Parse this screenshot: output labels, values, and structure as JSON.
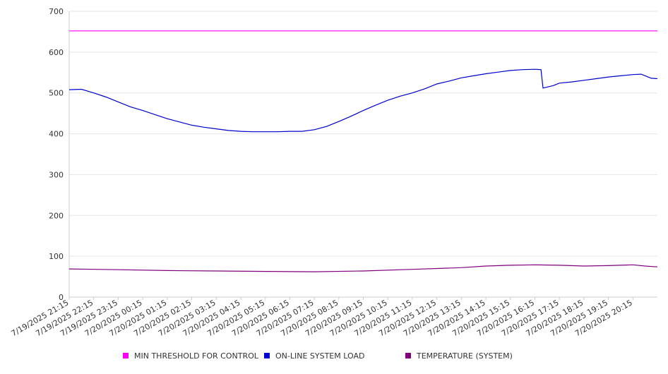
{
  "chart_data": {
    "type": "line",
    "title": "",
    "xlabel": "",
    "ylabel": "",
    "ylim": [
      0,
      700
    ],
    "y_ticks": [
      0,
      100,
      200,
      300,
      400,
      500,
      600,
      700
    ],
    "grid": "horizontal",
    "legend_position": "bottom",
    "x_start": "7/19/2025 21:15",
    "x_end": "7/20/2025 21:15",
    "x_tick_labels": [
      "7/19/2025 21:15",
      "7/19/2025 22:15",
      "7/19/2025 23:15",
      "7/20/2025 00:15",
      "7/20/2025 01:15",
      "7/20/2025 02:15",
      "7/20/2025 03:15",
      "7/20/2025 04:15",
      "7/20/2025 05:15",
      "7/20/2025 06:15",
      "7/20/2025 07:15",
      "7/20/2025 08:15",
      "7/20/2025 09:15",
      "7/20/2025 10:15",
      "7/20/2025 11:15",
      "7/20/2025 12:15",
      "7/20/2025 13:15",
      "7/20/2025 14:15",
      "7/20/2025 15:15",
      "7/20/2025 16:15",
      "7/20/2025 17:15",
      "7/20/2025 18:15",
      "7/20/2025 19:15",
      "7/20/2025 20:15"
    ],
    "series": [
      {
        "name": "MIN THRESHOLD FOR CONTROL",
        "color": "#ff00ff",
        "points": [
          {
            "x": "7/19/2025 21:15",
            "y": 652
          },
          {
            "x": "7/20/2025 21:15",
            "y": 652
          }
        ]
      },
      {
        "name": "ON-LINE SYSTEM LOAD",
        "color": "#0000cc",
        "points": [
          {
            "x": "7/19/2025 21:15",
            "y": 508
          },
          {
            "x": "7/19/2025 21:45",
            "y": 509
          },
          {
            "x": "7/19/2025 22:15",
            "y": 500
          },
          {
            "x": "7/19/2025 22:45",
            "y": 490
          },
          {
            "x": "7/19/2025 23:15",
            "y": 478
          },
          {
            "x": "7/19/2025 23:45",
            "y": 466
          },
          {
            "x": "7/20/2025 00:15",
            "y": 457
          },
          {
            "x": "7/20/2025 00:45",
            "y": 447
          },
          {
            "x": "7/20/2025 01:15",
            "y": 437
          },
          {
            "x": "7/20/2025 01:45",
            "y": 429
          },
          {
            "x": "7/20/2025 02:15",
            "y": 421
          },
          {
            "x": "7/20/2025 02:45",
            "y": 416
          },
          {
            "x": "7/20/2025 03:15",
            "y": 412
          },
          {
            "x": "7/20/2025 03:45",
            "y": 408
          },
          {
            "x": "7/20/2025 04:15",
            "y": 406
          },
          {
            "x": "7/20/2025 04:45",
            "y": 405
          },
          {
            "x": "7/20/2025 05:15",
            "y": 405
          },
          {
            "x": "7/20/2025 05:45",
            "y": 405
          },
          {
            "x": "7/20/2025 06:15",
            "y": 406
          },
          {
            "x": "7/20/2025 06:45",
            "y": 406
          },
          {
            "x": "7/20/2025 07:15",
            "y": 410
          },
          {
            "x": "7/20/2025 07:45",
            "y": 418
          },
          {
            "x": "7/20/2025 08:15",
            "y": 430
          },
          {
            "x": "7/20/2025 08:45",
            "y": 443
          },
          {
            "x": "7/20/2025 09:15",
            "y": 457
          },
          {
            "x": "7/20/2025 09:45",
            "y": 470
          },
          {
            "x": "7/20/2025 10:15",
            "y": 482
          },
          {
            "x": "7/20/2025 10:45",
            "y": 492
          },
          {
            "x": "7/20/2025 11:15",
            "y": 500
          },
          {
            "x": "7/20/2025 11:45",
            "y": 510
          },
          {
            "x": "7/20/2025 12:15",
            "y": 522
          },
          {
            "x": "7/20/2025 12:45",
            "y": 529
          },
          {
            "x": "7/20/2025 13:15",
            "y": 537
          },
          {
            "x": "7/20/2025 13:45",
            "y": 542
          },
          {
            "x": "7/20/2025 14:15",
            "y": 547
          },
          {
            "x": "7/20/2025 14:45",
            "y": 551
          },
          {
            "x": "7/20/2025 15:15",
            "y": 555
          },
          {
            "x": "7/20/2025 15:45",
            "y": 557
          },
          {
            "x": "7/20/2025 16:15",
            "y": 558
          },
          {
            "x": "7/20/2025 16:30",
            "y": 557
          },
          {
            "x": "7/20/2025 16:35",
            "y": 512
          },
          {
            "x": "7/20/2025 17:00",
            "y": 518
          },
          {
            "x": "7/20/2025 17:15",
            "y": 524
          },
          {
            "x": "7/20/2025 17:45",
            "y": 527
          },
          {
            "x": "7/20/2025 18:15",
            "y": 531
          },
          {
            "x": "7/20/2025 18:45",
            "y": 535
          },
          {
            "x": "7/20/2025 19:15",
            "y": 539
          },
          {
            "x": "7/20/2025 19:45",
            "y": 542
          },
          {
            "x": "7/20/2025 20:15",
            "y": 545
          },
          {
            "x": "7/20/2025 20:35",
            "y": 546
          },
          {
            "x": "7/20/2025 20:50",
            "y": 540
          },
          {
            "x": "7/20/2025 21:00",
            "y": 536
          },
          {
            "x": "7/20/2025 21:15",
            "y": 535
          }
        ]
      },
      {
        "name": "TEMPERATURE (SYSTEM)",
        "color": "#800080",
        "points": [
          {
            "x": "7/19/2025 21:15",
            "y": 69
          },
          {
            "x": "7/19/2025 23:15",
            "y": 67
          },
          {
            "x": "7/20/2025 01:15",
            "y": 65
          },
          {
            "x": "7/20/2025 03:15",
            "y": 64
          },
          {
            "x": "7/20/2025 05:15",
            "y": 63
          },
          {
            "x": "7/20/2025 07:15",
            "y": 62
          },
          {
            "x": "7/20/2025 09:15",
            "y": 64
          },
          {
            "x": "7/20/2025 11:15",
            "y": 68
          },
          {
            "x": "7/20/2025 13:15",
            "y": 72
          },
          {
            "x": "7/20/2025 14:15",
            "y": 76
          },
          {
            "x": "7/20/2025 15:15",
            "y": 78
          },
          {
            "x": "7/20/2025 16:15",
            "y": 79
          },
          {
            "x": "7/20/2025 17:15",
            "y": 78
          },
          {
            "x": "7/20/2025 18:15",
            "y": 76
          },
          {
            "x": "7/20/2025 19:15",
            "y": 77
          },
          {
            "x": "7/20/2025 20:15",
            "y": 79
          },
          {
            "x": "7/20/2025 20:45",
            "y": 76
          },
          {
            "x": "7/20/2025 21:15",
            "y": 74
          }
        ]
      }
    ]
  }
}
